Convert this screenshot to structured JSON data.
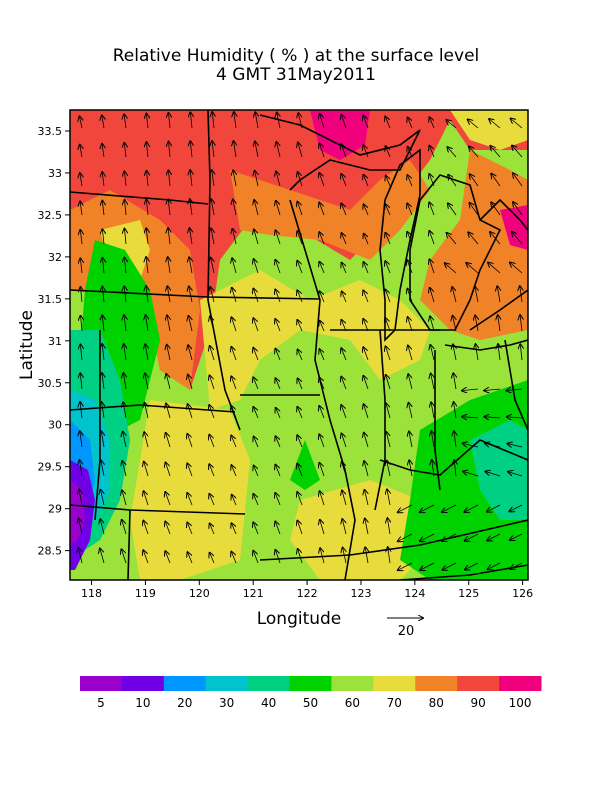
{
  "title": {
    "line1": "Relative Humidity ( % ) at the surface level",
    "line2": "4 GMT 31May2011"
  },
  "axes": {
    "xlabel": "Longitude",
    "ylabel": "Latitude",
    "x_ticks": [
      "118",
      "119",
      "120",
      "121",
      "122",
      "123",
      "124",
      "125",
      "126"
    ],
    "y_ticks": [
      "33.5",
      "33",
      "32.5",
      "32",
      "31.5",
      "31",
      "30.5",
      "30",
      "29.5",
      "29",
      "28.5"
    ],
    "xlim": [
      117.6,
      126.1
    ],
    "ylim": [
      28.15,
      33.75
    ]
  },
  "vector_reference": {
    "label": "20",
    "unit_hint": "reference wind arrow"
  },
  "colorbar": {
    "labels": [
      "5",
      "10",
      "20",
      "30",
      "40",
      "50",
      "60",
      "70",
      "80",
      "90",
      "100"
    ],
    "colors": [
      "#9a00cc",
      "#6f00e6",
      "#0096ff",
      "#00c3cc",
      "#00d082",
      "#00d200",
      "#9be23a",
      "#e8dc3c",
      "#f08228",
      "#f0463c",
      "#f0007d"
    ]
  },
  "chart_data": {
    "type": "heatmap",
    "title": "Relative Humidity ( % ) at the surface level",
    "subtitle": "4 GMT 31May2011",
    "xlabel": "Longitude",
    "ylabel": "Latitude",
    "xlim": [
      117.6,
      126.1
    ],
    "ylim": [
      28.15,
      33.75
    ],
    "levels": [
      5,
      10,
      20,
      30,
      40,
      50,
      60,
      70,
      80,
      90,
      100
    ],
    "grid": false,
    "legend": "bottom (horizontal color bar)"
  }
}
